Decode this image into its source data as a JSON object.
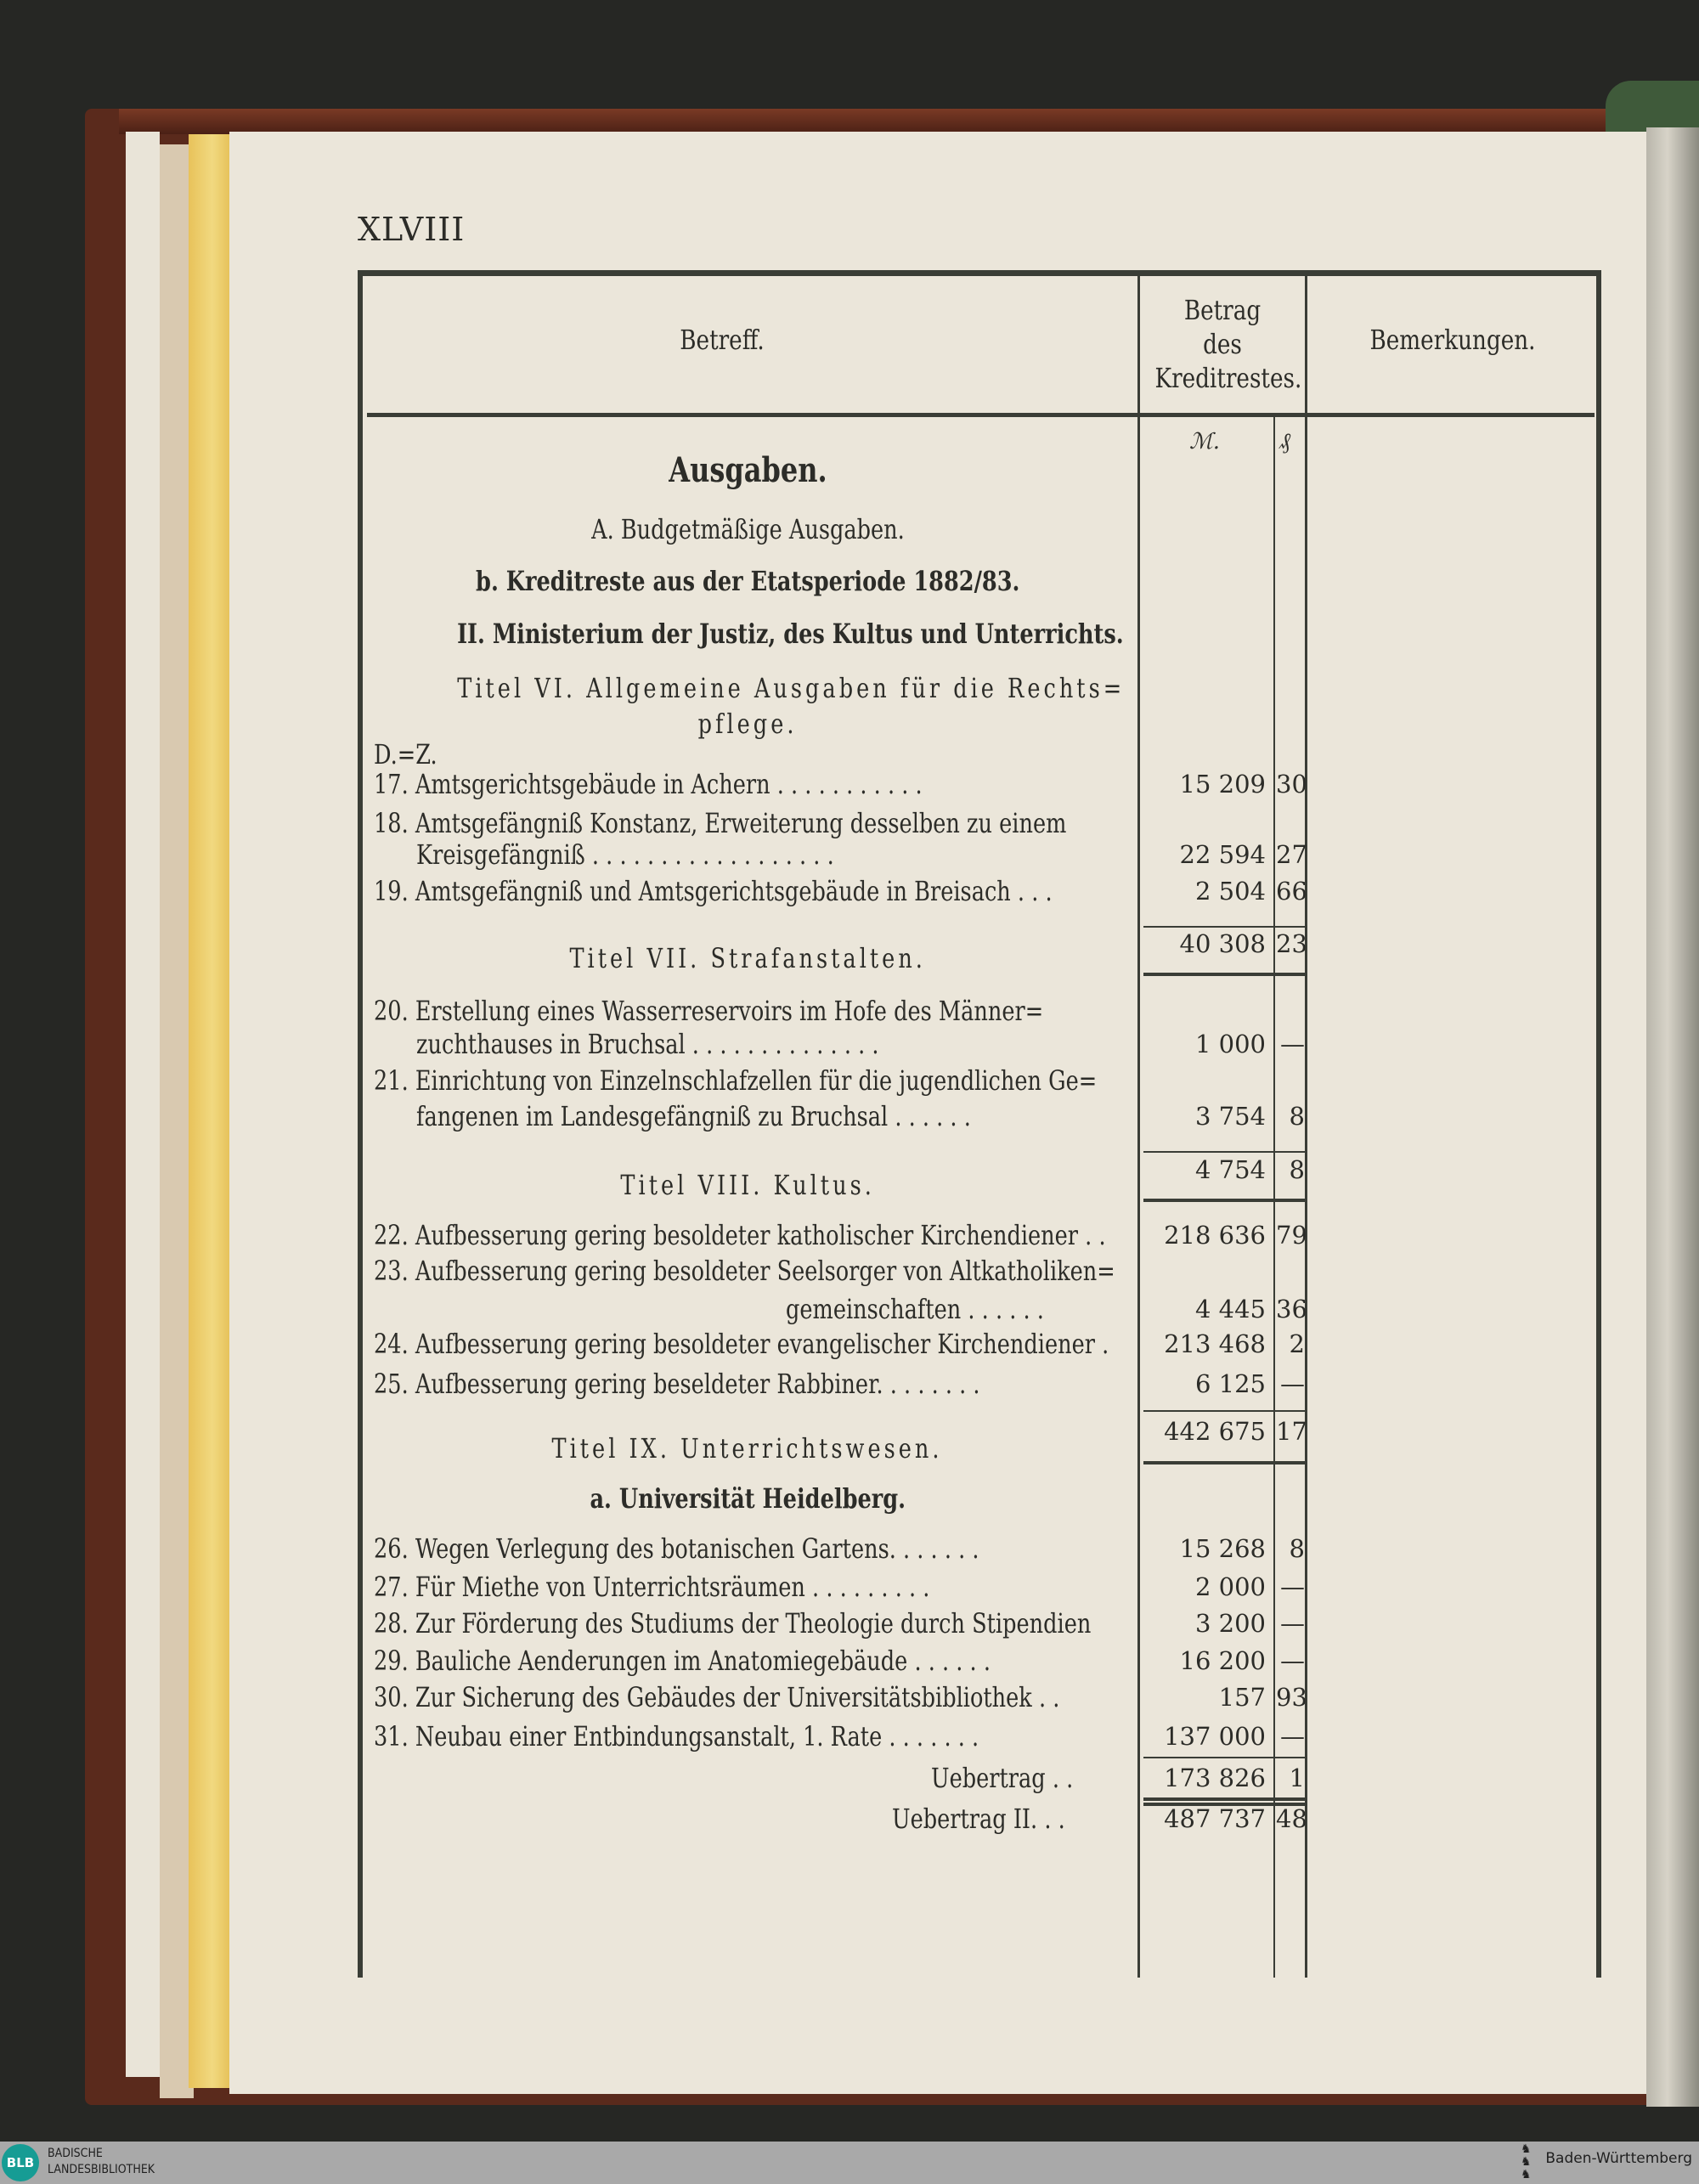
{
  "page_number": "XLVIII",
  "table_header": {
    "betreff": "Betreff.",
    "betrag": [
      "Betrag",
      "des",
      "Kreditrestes."
    ],
    "bemerkungen": "Bemerkungen.",
    "unit_mark": "ℳ.",
    "unit_pf": "₰"
  },
  "rows": [
    {
      "text": "Ausgaben.",
      "style": "big"
    },
    {
      "text": "A. Budgetmäßige Ausgaben.",
      "style": "center"
    },
    {
      "text": "b. Kreditreste aus der Etatsperiode 1882/83.",
      "style": "heading"
    },
    {
      "text": "II. Ministerium der Justiz, des Kultus und Unterrichts.",
      "style": "heading"
    },
    {
      "text": "Titel VI. Allgemeine Ausgaben für die Rechts=",
      "style": "spaced-center"
    },
    {
      "text": "pflege.",
      "style": "spaced-center"
    },
    {
      "text": "D.=Z.",
      "style": "left"
    },
    {
      "text": "17. Amtsgerichtsgebäude in Achern . . . . . . . . . . .",
      "style": "left",
      "amount": "15 209",
      "pf": "30"
    },
    {
      "text": "18. Amtsgefängniß Konstanz, Erweiterung desselben zu einem",
      "style": "left"
    },
    {
      "text": "Kreisgefängniß . . . . . . . . . . . . . . . . . .",
      "style": "indent",
      "amount": "22 594",
      "pf": "27"
    },
    {
      "text": "19. Amtsgefängniß und Amtsgerichtsgebäude in Breisach . . .",
      "style": "left",
      "amount": "2 504",
      "pf": "66"
    },
    {
      "text": "",
      "style": "left",
      "amount": "40 308",
      "pf": "23"
    },
    {
      "text": "Titel VII. Strafanstalten.",
      "style": "spaced-center"
    },
    {
      "text": "20. Erstellung eines Wasserreservoirs im Hofe des Männer=",
      "style": "left"
    },
    {
      "text": "zuchthauses in Bruchsal . . . . . . . . . . . . . .",
      "style": "indent",
      "amount": "1 000",
      "pf": "—"
    },
    {
      "text": "21. Einrichtung von Einzelnschlafzellen für die jugendlichen Ge=",
      "style": "left"
    },
    {
      "text": "fangenen im Landesgefängniß zu Bruchsal . . . . . .",
      "style": "indent",
      "amount": "3 754",
      "pf": "8"
    },
    {
      "text": "",
      "style": "left",
      "amount": "4 754",
      "pf": "8"
    },
    {
      "text": "Titel VIII. Kultus.",
      "style": "spaced-center"
    },
    {
      "text": "22. Aufbesserung gering besoldeter katholischer Kirchendiener . .",
      "style": "left",
      "amount": "218 636",
      "pf": "79"
    },
    {
      "text": "23. Aufbesserung gering besoldeter Seelsorger von Altkatholiken=",
      "style": "left"
    },
    {
      "text": "gemeinschaften . . . . . .",
      "style": "right",
      "amount": "4 445",
      "pf": "36"
    },
    {
      "text": "24. Aufbesserung gering besoldeter evangelischer Kirchendiener .",
      "style": "left",
      "amount": "213 468",
      "pf": "2"
    },
    {
      "text": "25. Aufbesserung gering beseldeter Rabbiner. . . . . . . .",
      "style": "left",
      "amount": "6 125",
      "pf": "—"
    },
    {
      "text": "",
      "style": "left",
      "amount": "442 675",
      "pf": "17"
    },
    {
      "text": "Titel IX. Unterrichtswesen.",
      "style": "spaced-center"
    },
    {
      "text": "a. Universität Heidelberg.",
      "style": "heading"
    },
    {
      "text": "26. Wegen Verlegung des botanischen Gartens. . . . . . .",
      "style": "left",
      "amount": "15 268",
      "pf": "8"
    },
    {
      "text": "27. Für Miethe von Unterrichtsräumen . . . . . . . . .",
      "style": "left",
      "amount": "2 000",
      "pf": "—"
    },
    {
      "text": "28. Zur Förderung des Studiums der Theologie durch Stipendien",
      "style": "left",
      "amount": "3 200",
      "pf": "—"
    },
    {
      "text": "29. Bauliche Aenderungen im Anatomiegebäude . . . . . .",
      "style": "left",
      "amount": "16 200",
      "pf": "—"
    },
    {
      "text": "30. Zur Sicherung des Gebäudes der Universitätsbibliothek . .",
      "style": "left",
      "amount": "157",
      "pf": "93"
    },
    {
      "text": "31. Neubau einer Entbindungsanstalt, 1. Rate . . . . . . .",
      "style": "left",
      "amount": "137 000",
      "pf": "—"
    },
    {
      "text": "Uebertrag . .",
      "style": "right",
      "amount": "173 826",
      "pf": "1"
    },
    {
      "text": "Uebertrag II. . .",
      "style": "right",
      "amount": "487 737",
      "pf": "48"
    }
  ],
  "footer": {
    "library_logo": "BLB",
    "library_name": [
      "BADISCHE",
      "LANDESBIBLIOTHEK"
    ],
    "state_name": "Baden-Württemberg",
    "brand_color": "#169c94"
  }
}
